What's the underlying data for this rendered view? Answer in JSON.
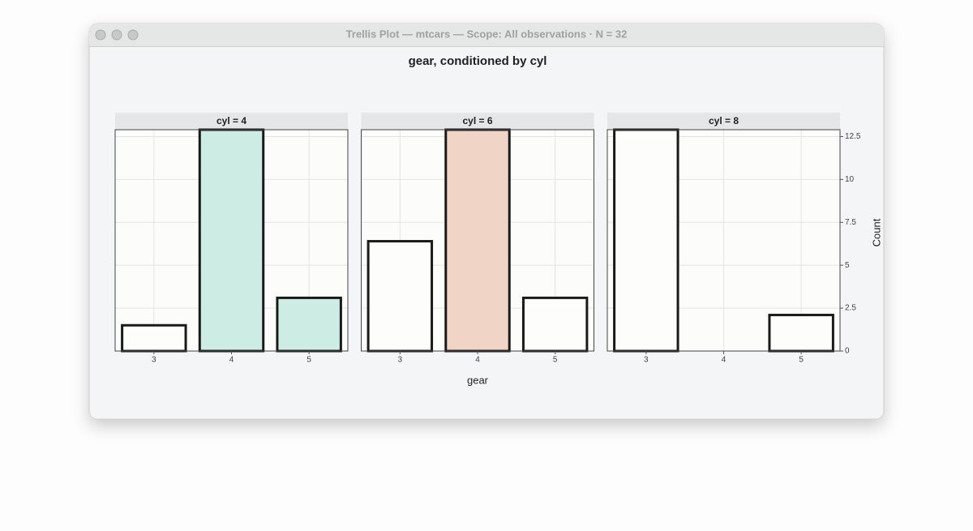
{
  "window_title": "Trellis Plot — mtcars — Scope: All observations · N = 32",
  "chart_data": {
    "type": "bar",
    "title": "gear, conditioned by cyl",
    "xlabel": "gear",
    "ylabel": "Count",
    "categories": [
      "3",
      "4",
      "5"
    ],
    "panels": [
      {
        "label": "cyl = 4",
        "values": [
          1.5,
          12.9,
          3.1
        ],
        "colors": [
          "#fdfdfc",
          "#cdece3",
          "#cdece3"
        ]
      },
      {
        "label": "cyl = 6",
        "values": [
          6.4,
          12.9,
          3.1
        ],
        "colors": [
          "#fdfdfc",
          "#f0d4c5",
          "#fdfdfc"
        ]
      },
      {
        "label": "cyl = 8",
        "values": [
          12.9,
          0,
          2.1
        ],
        "colors": [
          "#fdfdfc",
          "#fdfdfc",
          "#fdfdfc"
        ]
      }
    ],
    "ylim": [
      0,
      12.9
    ],
    "yticks": [
      0,
      2.5,
      5,
      7.5,
      10,
      12.5
    ],
    "grid": true
  }
}
